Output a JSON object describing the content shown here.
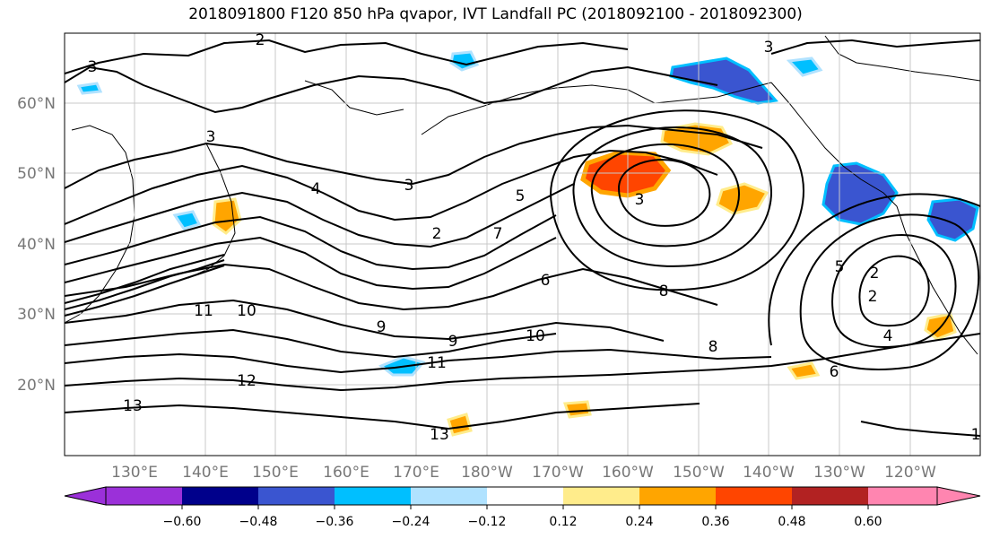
{
  "title": "2018091800 F120 850 hPa qvapor, IVT Landfall PC (2018092100 - 2018092300)",
  "lat_labels": [
    "60°N",
    "50°N",
    "40°N",
    "30°N",
    "20°N"
  ],
  "lon_labels": [
    "130°E",
    "140°E",
    "150°E",
    "160°E",
    "170°E",
    "180°W",
    "170°W",
    "160°W",
    "150°W",
    "140°W",
    "130°W",
    "120°W"
  ],
  "contour_labels": [
    "3",
    "2",
    "3",
    "3",
    "2",
    "3",
    "5",
    "4",
    "3",
    "2",
    "5",
    "6",
    "7",
    "8",
    "11",
    "10",
    "9",
    "9",
    "10",
    "11",
    "12",
    "13",
    "13",
    "1",
    "2",
    "4",
    "6",
    "8"
  ],
  "colorbar": {
    "ticks": [
      "−0.60",
      "−0.48",
      "−0.36",
      "−0.24",
      "−0.12",
      "0.12",
      "0.24",
      "0.36",
      "0.48",
      "0.60"
    ],
    "colors": [
      "#9b30d9",
      "#00008b",
      "#3a55d0",
      "#00bfff",
      "#b0e2ff",
      "#ffffff",
      "#ffec8b",
      "#ffa500",
      "#ff4500",
      "#b22222",
      "#ff85b0"
    ]
  }
}
